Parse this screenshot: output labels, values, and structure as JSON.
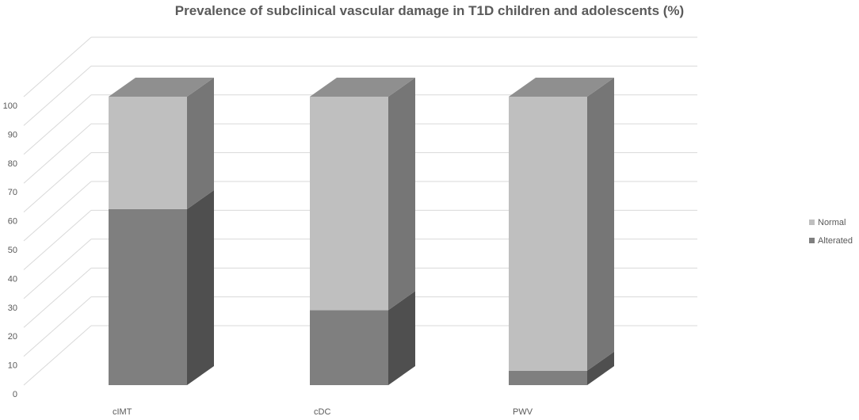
{
  "chart_data": {
    "type": "bar",
    "stacked": true,
    "three_d": true,
    "title": "Prevalence of subclinical vascular damage in T1D children and adolescents (%)",
    "xlabel": "",
    "ylabel": "",
    "categories": [
      "cIMT",
      "cDC",
      "PWV"
    ],
    "series": [
      {
        "name": "Alterated",
        "values": [
          61,
          26,
          5
        ],
        "color": "#7f7f7f"
      },
      {
        "name": "Normal",
        "values": [
          39,
          74,
          95
        ],
        "color": "#bfbfbf"
      }
    ],
    "ylim": [
      0,
      100
    ],
    "yticks": [
      0,
      10,
      20,
      30,
      40,
      50,
      60,
      70,
      80,
      90,
      100
    ],
    "grid": true,
    "legend_position": "right"
  }
}
